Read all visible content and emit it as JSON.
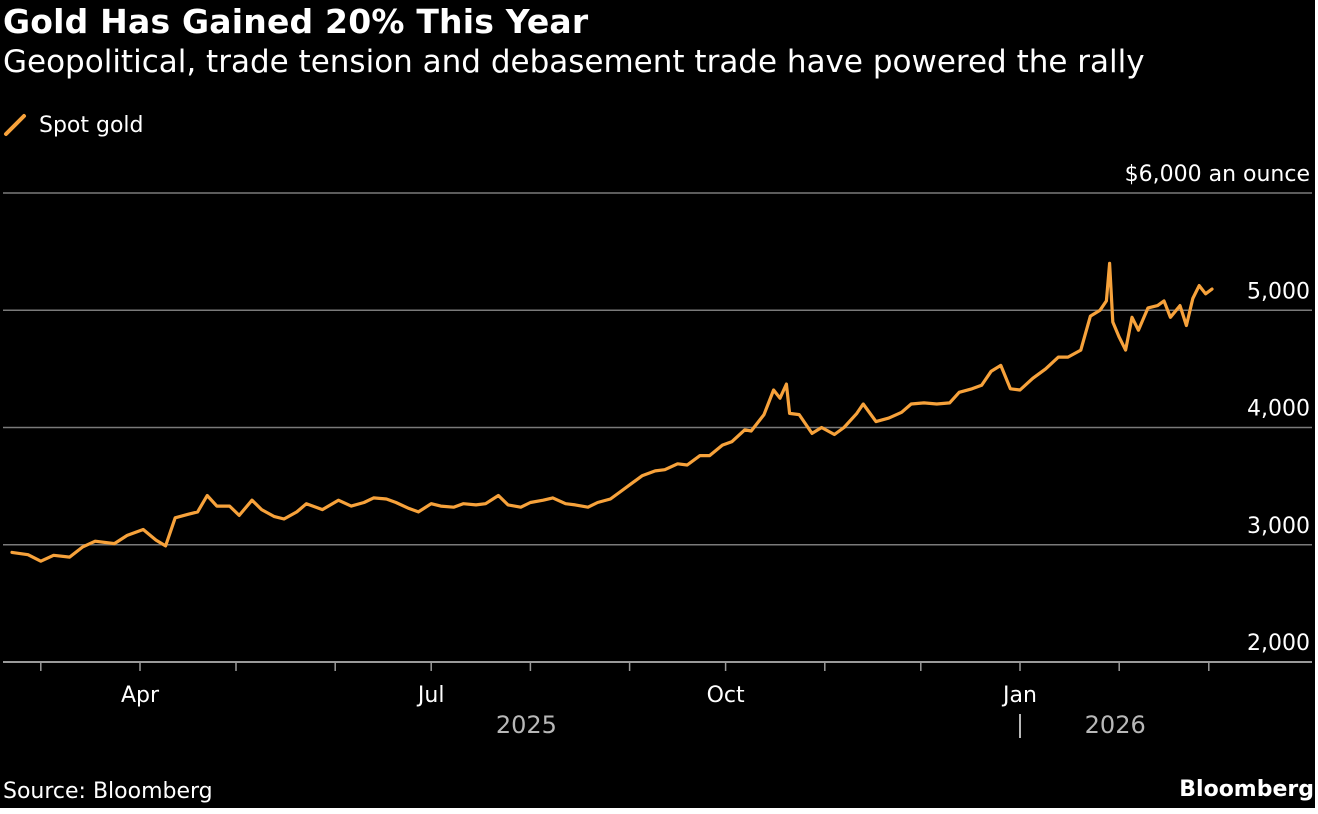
{
  "title": "Gold Has Gained 20% This Year",
  "subtitle": "Geopolitical, trade tension and debasement trade have powered the rally",
  "source": "Source: Bloomberg",
  "brand": "Bloomberg",
  "colors": {
    "background": "#000000",
    "series": "#f7a23b",
    "grid": "#7a7a7a",
    "text": "#ffffff"
  },
  "chart_data": {
    "type": "line",
    "ylim": [
      2000,
      6000
    ],
    "y_ticks": [
      2000,
      3000,
      4000,
      5000,
      6000
    ],
    "y_tick_labels": [
      "2,000",
      "3,000",
      "4,000",
      "5,000",
      "$6,000 an ounce"
    ],
    "y_axis_side": "right",
    "grid": true,
    "legend_position": "top-left",
    "x_range": [
      "2025-02-20",
      "2026-03-02"
    ],
    "month_ticks": [
      "2025-03-01",
      "2025-04-01",
      "2025-05-01",
      "2025-06-01",
      "2025-07-01",
      "2025-08-01",
      "2025-09-01",
      "2025-10-01",
      "2025-11-01",
      "2025-12-01",
      "2026-01-01",
      "2026-02-01",
      "2026-03-01"
    ],
    "x_tick_labels": [
      {
        "date": "2025-04-01",
        "label": "Apr"
      },
      {
        "date": "2025-07-01",
        "label": "Jul"
      },
      {
        "date": "2025-10-01",
        "label": "Oct"
      },
      {
        "date": "2026-01-01",
        "label": "Jan"
      }
    ],
    "year_labels": [
      {
        "date": "2025-08-01",
        "label": "2025"
      },
      {
        "date": "2026-02-01",
        "label": "2026"
      }
    ],
    "year_divider": "2026-01-01",
    "series": [
      {
        "name": "Spot gold",
        "color": "#f7a23b",
        "points": [
          [
            "2025-02-20",
            2935
          ],
          [
            "2025-02-25",
            2915
          ],
          [
            "2025-03-01",
            2860
          ],
          [
            "2025-03-05",
            2910
          ],
          [
            "2025-03-10",
            2895
          ],
          [
            "2025-03-14",
            2980
          ],
          [
            "2025-03-18",
            3030
          ],
          [
            "2025-03-24",
            3010
          ],
          [
            "2025-03-28",
            3080
          ],
          [
            "2025-04-02",
            3130
          ],
          [
            "2025-04-06",
            3040
          ],
          [
            "2025-04-09",
            2990
          ],
          [
            "2025-04-12",
            3230
          ],
          [
            "2025-04-16",
            3260
          ],
          [
            "2025-04-19",
            3280
          ],
          [
            "2025-04-22",
            3420
          ],
          [
            "2025-04-25",
            3330
          ],
          [
            "2025-04-29",
            3330
          ],
          [
            "2025-05-02",
            3250
          ],
          [
            "2025-05-06",
            3380
          ],
          [
            "2025-05-09",
            3300
          ],
          [
            "2025-05-13",
            3240
          ],
          [
            "2025-05-16",
            3220
          ],
          [
            "2025-05-20",
            3280
          ],
          [
            "2025-05-23",
            3350
          ],
          [
            "2025-05-28",
            3300
          ],
          [
            "2025-06-02",
            3380
          ],
          [
            "2025-06-06",
            3330
          ],
          [
            "2025-06-10",
            3360
          ],
          [
            "2025-06-13",
            3400
          ],
          [
            "2025-06-17",
            3390
          ],
          [
            "2025-06-20",
            3360
          ],
          [
            "2025-06-24",
            3310
          ],
          [
            "2025-06-27",
            3280
          ],
          [
            "2025-07-01",
            3350
          ],
          [
            "2025-07-04",
            3330
          ],
          [
            "2025-07-08",
            3320
          ],
          [
            "2025-07-11",
            3350
          ],
          [
            "2025-07-15",
            3340
          ],
          [
            "2025-07-18",
            3350
          ],
          [
            "2025-07-22",
            3420
          ],
          [
            "2025-07-25",
            3340
          ],
          [
            "2025-07-29",
            3320
          ],
          [
            "2025-08-01",
            3360
          ],
          [
            "2025-08-05",
            3380
          ],
          [
            "2025-08-08",
            3400
          ],
          [
            "2025-08-12",
            3350
          ],
          [
            "2025-08-15",
            3340
          ],
          [
            "2025-08-19",
            3320
          ],
          [
            "2025-08-22",
            3360
          ],
          [
            "2025-08-26",
            3390
          ],
          [
            "2025-08-29",
            3450
          ],
          [
            "2025-09-02",
            3530
          ],
          [
            "2025-09-05",
            3590
          ],
          [
            "2025-09-09",
            3630
          ],
          [
            "2025-09-12",
            3640
          ],
          [
            "2025-09-16",
            3690
          ],
          [
            "2025-09-19",
            3680
          ],
          [
            "2025-09-23",
            3760
          ],
          [
            "2025-09-26",
            3760
          ],
          [
            "2025-09-30",
            3850
          ],
          [
            "2025-10-03",
            3880
          ],
          [
            "2025-10-07",
            3980
          ],
          [
            "2025-10-09",
            3970
          ],
          [
            "2025-10-13",
            4110
          ],
          [
            "2025-10-16",
            4320
          ],
          [
            "2025-10-18",
            4250
          ],
          [
            "2025-10-20",
            4370
          ],
          [
            "2025-10-21",
            4120
          ],
          [
            "2025-10-24",
            4110
          ],
          [
            "2025-10-28",
            3950
          ],
          [
            "2025-10-31",
            4000
          ],
          [
            "2025-11-04",
            3940
          ],
          [
            "2025-11-07",
            4000
          ],
          [
            "2025-11-11",
            4120
          ],
          [
            "2025-11-13",
            4200
          ],
          [
            "2025-11-17",
            4050
          ],
          [
            "2025-11-21",
            4080
          ],
          [
            "2025-11-25",
            4130
          ],
          [
            "2025-11-28",
            4200
          ],
          [
            "2025-12-02",
            4210
          ],
          [
            "2025-12-06",
            4200
          ],
          [
            "2025-12-10",
            4210
          ],
          [
            "2025-12-13",
            4300
          ],
          [
            "2025-12-17",
            4330
          ],
          [
            "2025-12-20",
            4360
          ],
          [
            "2025-12-23",
            4480
          ],
          [
            "2025-12-26",
            4530
          ],
          [
            "2025-12-29",
            4330
          ],
          [
            "2026-01-01",
            4320
          ],
          [
            "2026-01-05",
            4420
          ],
          [
            "2026-01-09",
            4500
          ],
          [
            "2026-01-13",
            4600
          ],
          [
            "2026-01-16",
            4600
          ],
          [
            "2026-01-20",
            4660
          ],
          [
            "2026-01-23",
            4950
          ],
          [
            "2026-01-26",
            5000
          ],
          [
            "2026-01-28",
            5080
          ],
          [
            "2026-01-29",
            5400
          ],
          [
            "2026-01-30",
            4900
          ],
          [
            "2026-02-01",
            4770
          ],
          [
            "2026-02-03",
            4660
          ],
          [
            "2026-02-05",
            4940
          ],
          [
            "2026-02-07",
            4830
          ],
          [
            "2026-02-10",
            5020
          ],
          [
            "2026-02-13",
            5040
          ],
          [
            "2026-02-15",
            5080
          ],
          [
            "2026-02-17",
            4940
          ],
          [
            "2026-02-20",
            5040
          ],
          [
            "2026-02-22",
            4870
          ],
          [
            "2026-02-24",
            5100
          ],
          [
            "2026-02-26",
            5210
          ],
          [
            "2026-02-28",
            5140
          ],
          [
            "2026-03-02",
            5180
          ]
        ]
      }
    ]
  },
  "legend": {
    "label": "Spot gold"
  }
}
